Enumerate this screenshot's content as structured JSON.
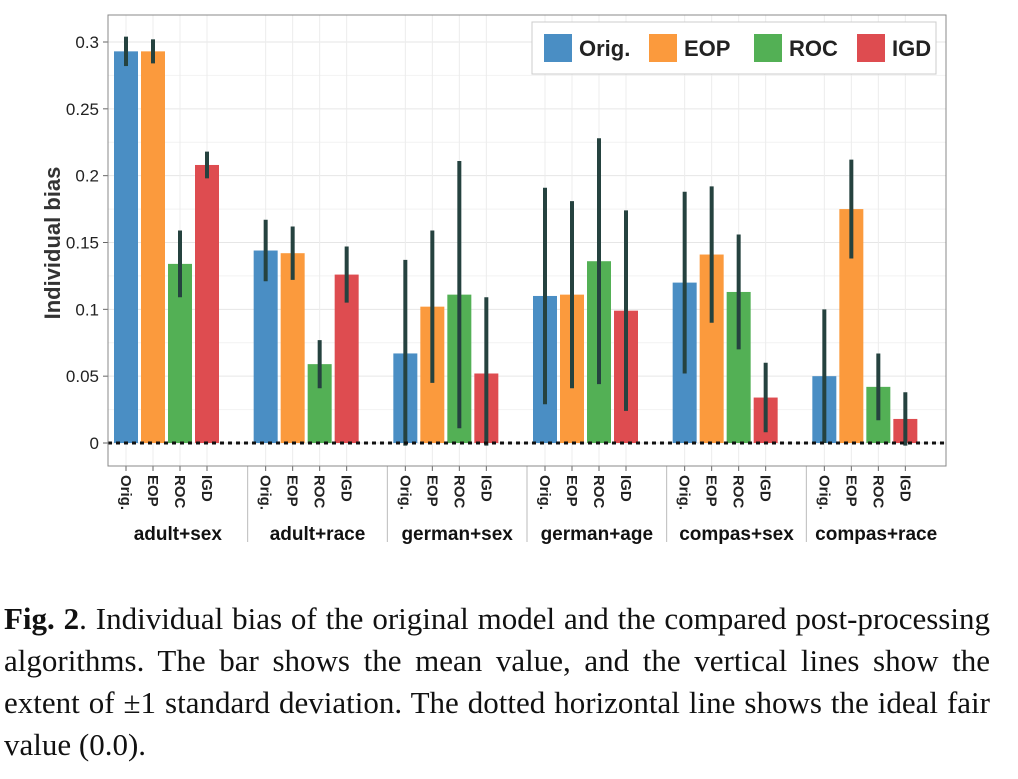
{
  "chart_data": {
    "type": "bar",
    "ylabel": "Individual bias",
    "ylim": [
      0,
      0.31
    ],
    "yticks": [
      0,
      0.05,
      0.1,
      0.15,
      0.2,
      0.25,
      0.3
    ],
    "ytick_labels": [
      "0",
      "0.05",
      "0.1",
      "0.15",
      "0.2",
      "0.25",
      "0.3"
    ],
    "grid": true,
    "legend_position": "top-right",
    "reference_line": {
      "value": 0.0,
      "style": "dotted"
    },
    "methods": [
      "Orig.",
      "EOP",
      "ROC",
      "IGD"
    ],
    "colors": {
      "Orig.": "#4a8ec4",
      "EOP": "#fb9a3d",
      "ROC": "#53b055",
      "IGD": "#de4c50"
    },
    "error_bar_color": "#25423f",
    "groups": [
      "adult+sex",
      "adult+race",
      "german+sex",
      "german+age",
      "compas+sex",
      "compas+race"
    ],
    "series": [
      {
        "name": "Orig.",
        "values": [
          0.293,
          0.144,
          0.067,
          0.11,
          0.12,
          0.05
        ],
        "std": [
          0.011,
          0.023,
          0.07,
          0.081,
          0.068,
          0.05
        ]
      },
      {
        "name": "EOP",
        "values": [
          0.293,
          0.142,
          0.102,
          0.111,
          0.141,
          0.175
        ],
        "std": [
          0.009,
          0.02,
          0.057,
          0.07,
          0.051,
          0.037
        ]
      },
      {
        "name": "ROC",
        "values": [
          0.134,
          0.059,
          0.111,
          0.136,
          0.113,
          0.042
        ],
        "std": [
          0.025,
          0.018,
          0.1,
          0.092,
          0.043,
          0.025
        ]
      },
      {
        "name": "IGD",
        "values": [
          0.208,
          0.126,
          0.052,
          0.099,
          0.034,
          0.018
        ],
        "std": [
          0.01,
          0.021,
          0.057,
          0.075,
          0.026,
          0.02
        ]
      }
    ]
  },
  "caption": {
    "label": "Fig. 2",
    "text": ". Individual bias of the original model and the compared post-processing algorithms. The bar shows the mean value, and the vertical lines show the extent of ±1 standard deviation. The dotted horizontal line shows the ideal fair value (0.0)."
  }
}
